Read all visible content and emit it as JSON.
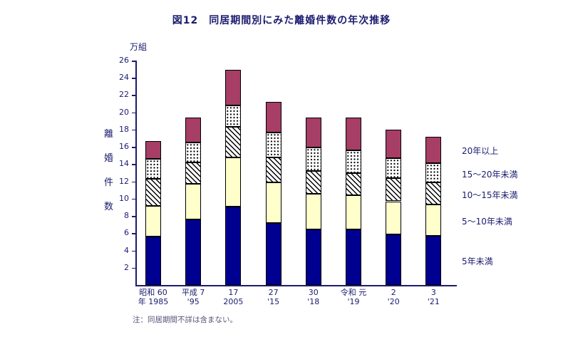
{
  "title": "図12　同居期間別にみた離婚件数の年次推移",
  "note": "注：同居期間不詳は含まない。",
  "y_axis": {
    "unit_label": "万組",
    "axis_title": "離婚件数",
    "ticks": [
      26,
      24,
      22,
      20,
      18,
      16,
      14,
      12,
      10,
      8,
      6,
      4,
      2
    ]
  },
  "chart_data": {
    "type": "bar",
    "stacked": true,
    "title": "図12　同居期間別にみた離婚件数の年次推移",
    "xlabel": "",
    "ylabel": "離婚件数（万組）",
    "ylim": [
      0,
      26
    ],
    "ytick_step": 2,
    "grid": false,
    "legend_position": "right",
    "categories": [
      {
        "line1": "昭和 60",
        "line2": "年 1985"
      },
      {
        "line1": "平成 7",
        "line2": "'95"
      },
      {
        "line1": "17",
        "line2": "2005"
      },
      {
        "line1": "27",
        "line2": "'15"
      },
      {
        "line1": "30",
        "line2": "'18"
      },
      {
        "line1": "令和 元",
        "line2": "'19"
      },
      {
        "line1": "2",
        "line2": "'20"
      },
      {
        "line1": "3",
        "line2": "'21"
      }
    ],
    "series": [
      {
        "name": "5年未満",
        "pattern": "solid",
        "color": "#000090",
        "values": [
          5.6,
          7.6,
          9.1,
          7.2,
          6.4,
          6.4,
          5.9,
          5.7
        ]
      },
      {
        "name": "5〜10年未満",
        "pattern": "solid",
        "color": "#ffffcc",
        "values": [
          3.6,
          4.1,
          5.7,
          4.7,
          4.2,
          4.0,
          3.8,
          3.6
        ]
      },
      {
        "name": "10〜15年未満",
        "pattern": "hatch",
        "color": "#ffffff",
        "values": [
          3.1,
          2.5,
          3.5,
          2.9,
          2.6,
          2.6,
          2.7,
          2.6
        ]
      },
      {
        "name": "15〜20年未満",
        "pattern": "dots",
        "color": "#ffffff",
        "values": [
          2.3,
          2.3,
          2.5,
          2.9,
          2.7,
          2.6,
          2.3,
          2.2
        ]
      },
      {
        "name": "20年以上",
        "pattern": "solid",
        "color": "#a63e66",
        "values": [
          2.1,
          2.9,
          4.1,
          3.5,
          3.5,
          3.8,
          3.3,
          3.1
        ]
      }
    ],
    "totals": [
      16.7,
      19.4,
      24.9,
      21.2,
      19.4,
      19.4,
      18.0,
      17.2
    ]
  },
  "colors": {
    "text": "#1b1b6f",
    "axis": "#1b1b6f",
    "bar_border": "#000000",
    "series_blue": "#000090",
    "series_cream": "#ffffcc",
    "series_magenta": "#a63e66"
  }
}
